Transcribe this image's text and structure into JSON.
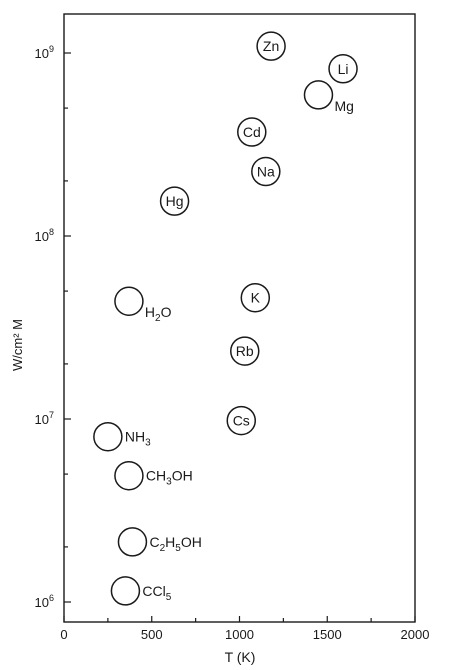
{
  "chart_data": {
    "type": "scatter",
    "title": "",
    "xlabel": "T (K)",
    "ylabel": "W/cm² M",
    "xlim": [
      0,
      2000
    ],
    "ylim": [
      1000000,
      2000000000
    ],
    "yscale": "log",
    "grid": false,
    "x_ticks": [
      {
        "value": 0,
        "label": "0"
      },
      {
        "value": 500,
        "label": "500"
      },
      {
        "value": 1000,
        "label": "1000"
      },
      {
        "value": 1500,
        "label": "1500"
      },
      {
        "value": 2000,
        "label": "2000"
      }
    ],
    "y_ticks": [
      {
        "value": 1000000,
        "base": "10",
        "exp": "6"
      },
      {
        "value": 10000000,
        "base": "10",
        "exp": "7"
      },
      {
        "value": 100000000,
        "base": "10",
        "exp": "8"
      },
      {
        "value": 1000000000,
        "base": "10",
        "exp": "9"
      }
    ],
    "points": [
      {
        "label": "Zn",
        "x": 1180,
        "y": 1090000000,
        "label_pos": "inside"
      },
      {
        "label": "Li",
        "x": 1590,
        "y": 820000000,
        "label_pos": "inside"
      },
      {
        "label": "Mg",
        "x": 1450,
        "y": 590000000,
        "label_pos": "right-below"
      },
      {
        "label": "Cd",
        "x": 1070,
        "y": 370000000,
        "label_pos": "inside"
      },
      {
        "label": "Na",
        "x": 1150,
        "y": 225000000,
        "label_pos": "inside"
      },
      {
        "label": "Hg",
        "x": 630,
        "y": 155000000,
        "label_pos": "inside"
      },
      {
        "label": "H2O",
        "parts": [
          {
            "t": "H"
          },
          {
            "t": "2",
            "sub": true
          },
          {
            "t": "O"
          }
        ],
        "x": 370,
        "y": 44000000,
        "label_pos": "right-below"
      },
      {
        "label": "K",
        "x": 1090,
        "y": 46000000,
        "label_pos": "inside"
      },
      {
        "label": "Rb",
        "x": 1030,
        "y": 23500000,
        "label_pos": "inside"
      },
      {
        "label": "Cs",
        "x": 1010,
        "y": 9800000,
        "label_pos": "inside"
      },
      {
        "label": "NH3",
        "parts": [
          {
            "t": "NH"
          },
          {
            "t": "3",
            "sub": true
          }
        ],
        "x": 250,
        "y": 8000000,
        "label_pos": "right"
      },
      {
        "label": "CH3OH",
        "parts": [
          {
            "t": "CH"
          },
          {
            "t": "3",
            "sub": true
          },
          {
            "t": "OH"
          }
        ],
        "x": 370,
        "y": 4900000,
        "label_pos": "right"
      },
      {
        "label": "C2H5OH",
        "parts": [
          {
            "t": "C"
          },
          {
            "t": "2",
            "sub": true
          },
          {
            "t": "H"
          },
          {
            "t": "5",
            "sub": true
          },
          {
            "t": "OH"
          }
        ],
        "x": 390,
        "y": 2130000,
        "label_pos": "right"
      },
      {
        "label": "CCl5",
        "parts": [
          {
            "t": "CCl"
          },
          {
            "t": "5",
            "sub": true
          }
        ],
        "x": 350,
        "y": 1150000,
        "label_pos": "right"
      }
    ]
  }
}
